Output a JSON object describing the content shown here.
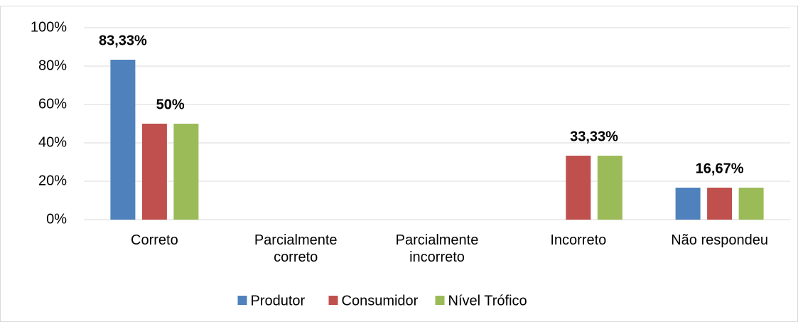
{
  "chart_data": {
    "type": "bar",
    "categories": [
      "Correto",
      "Parcialmente correto",
      "Parcialmente incorreto",
      "Incorreto",
      "Não respondeu"
    ],
    "series": [
      {
        "name": "Produtor",
        "color": "#4f81bd",
        "values": [
          83.33,
          0,
          0,
          0,
          16.67
        ],
        "value_labels": [
          "83,33%",
          null,
          null,
          null,
          null
        ]
      },
      {
        "name": "Consumidor",
        "color": "#c0504d",
        "values": [
          50,
          0,
          0,
          33.33,
          16.67
        ],
        "value_labels": [
          "50%",
          null,
          null,
          "33,33%",
          "16,67%"
        ]
      },
      {
        "name": "Nível Trófico",
        "color": "#9bbb59",
        "values": [
          50,
          0,
          0,
          33.33,
          16.67
        ],
        "value_labels": [
          null,
          null,
          null,
          null,
          null
        ]
      }
    ],
    "ylim": [
      0,
      100
    ],
    "yticks": [
      {
        "value": 0,
        "label": "0%"
      },
      {
        "value": 20,
        "label": "20%"
      },
      {
        "value": 40,
        "label": "40%"
      },
      {
        "value": 60,
        "label": "60%"
      },
      {
        "value": 80,
        "label": "80%"
      },
      {
        "value": 100,
        "label": "100%"
      }
    ],
    "grid": true,
    "legend": "bottom"
  }
}
